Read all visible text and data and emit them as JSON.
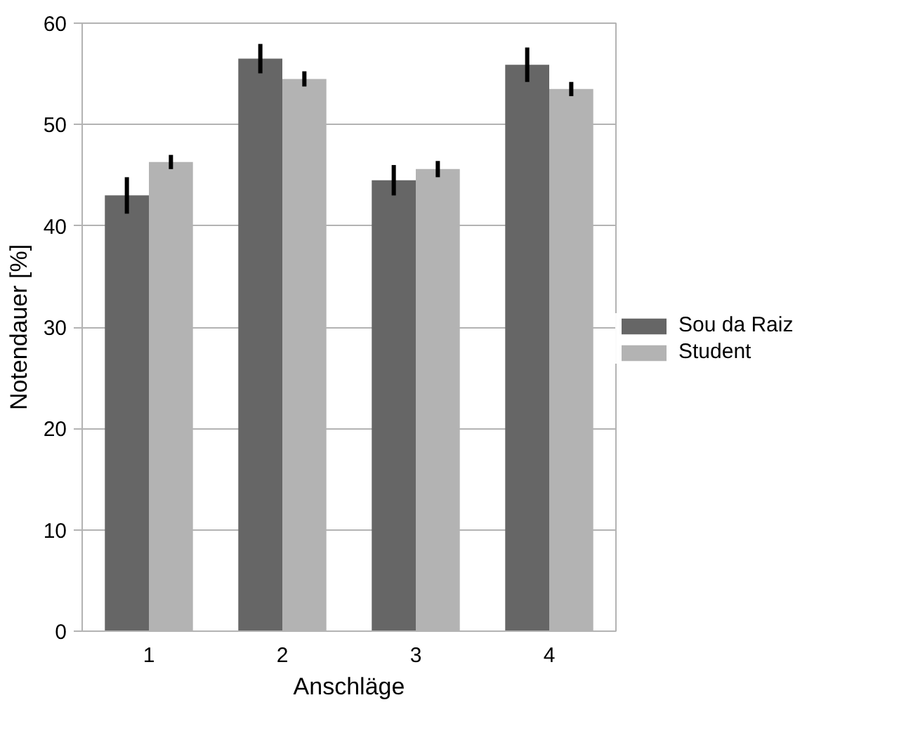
{
  "chart_data": {
    "type": "bar",
    "xlabel": "Anschläge",
    "ylabel": "Notendauer [%]",
    "categories": [
      "1",
      "2",
      "3",
      "4"
    ],
    "series": [
      {
        "name": "Sou da Raiz",
        "color": "#666666",
        "values": [
          43.0,
          56.5,
          44.5,
          55.9
        ],
        "errors": [
          1.8,
          1.45,
          1.5,
          1.7
        ]
      },
      {
        "name": "Student",
        "color": "#b3b3b3",
        "values": [
          46.3,
          54.5,
          45.6,
          53.5
        ],
        "errors": [
          0.7,
          0.75,
          0.8,
          0.7
        ]
      }
    ],
    "ylim": [
      0,
      60
    ],
    "yticks": [
      0,
      10,
      20,
      30,
      40,
      50,
      60
    ],
    "grid": "y",
    "legend": "right"
  }
}
